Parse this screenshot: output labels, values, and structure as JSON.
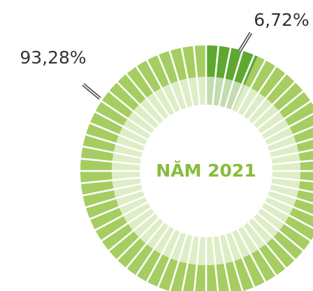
{
  "chart_data": {
    "type": "donut",
    "categories": [
      null,
      null
    ],
    "series": [
      {
        "values": [
          6.72,
          93.28
        ],
        "value_labels": [
          "6,72%",
          "93,28%"
        ],
        "colors": [
          "#5ea832",
          "#a5cd62"
        ],
        "inner_colors": [
          "#c3dcb0",
          "#deedc6"
        ]
      }
    ],
    "center_label": "NĂM 2021"
  }
}
